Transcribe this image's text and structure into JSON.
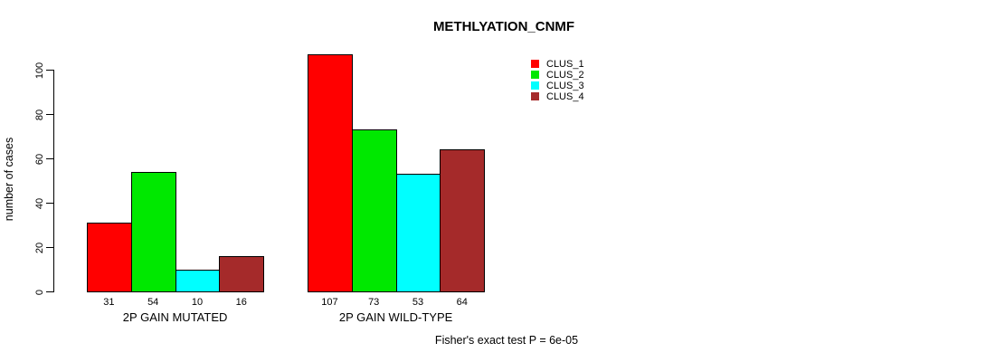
{
  "chart_data": {
    "type": "bar",
    "title": "METHLYATION_CNMF",
    "ylabel": "number of cases",
    "xlabel": "",
    "footnote": "Fisher's exact test P = 6e-05",
    "yticks": [
      0,
      20,
      40,
      60,
      80,
      100
    ],
    "ylim": [
      0,
      107
    ],
    "grid": false,
    "legend_position": "top-right",
    "bar_value_labels": true,
    "categories": [
      "2P GAIN MUTATED",
      "2P GAIN WILD-TYPE"
    ],
    "series": [
      {
        "name": "CLUS_1",
        "color": "#ff0000",
        "values": [
          31,
          107
        ]
      },
      {
        "name": "CLUS_2",
        "color": "#00e800",
        "values": [
          54,
          73
        ]
      },
      {
        "name": "CLUS_3",
        "color": "#00ffff",
        "values": [
          10,
          53
        ]
      },
      {
        "name": "CLUS_4",
        "color": "#a52a2a",
        "values": [
          16,
          64
        ]
      }
    ]
  }
}
